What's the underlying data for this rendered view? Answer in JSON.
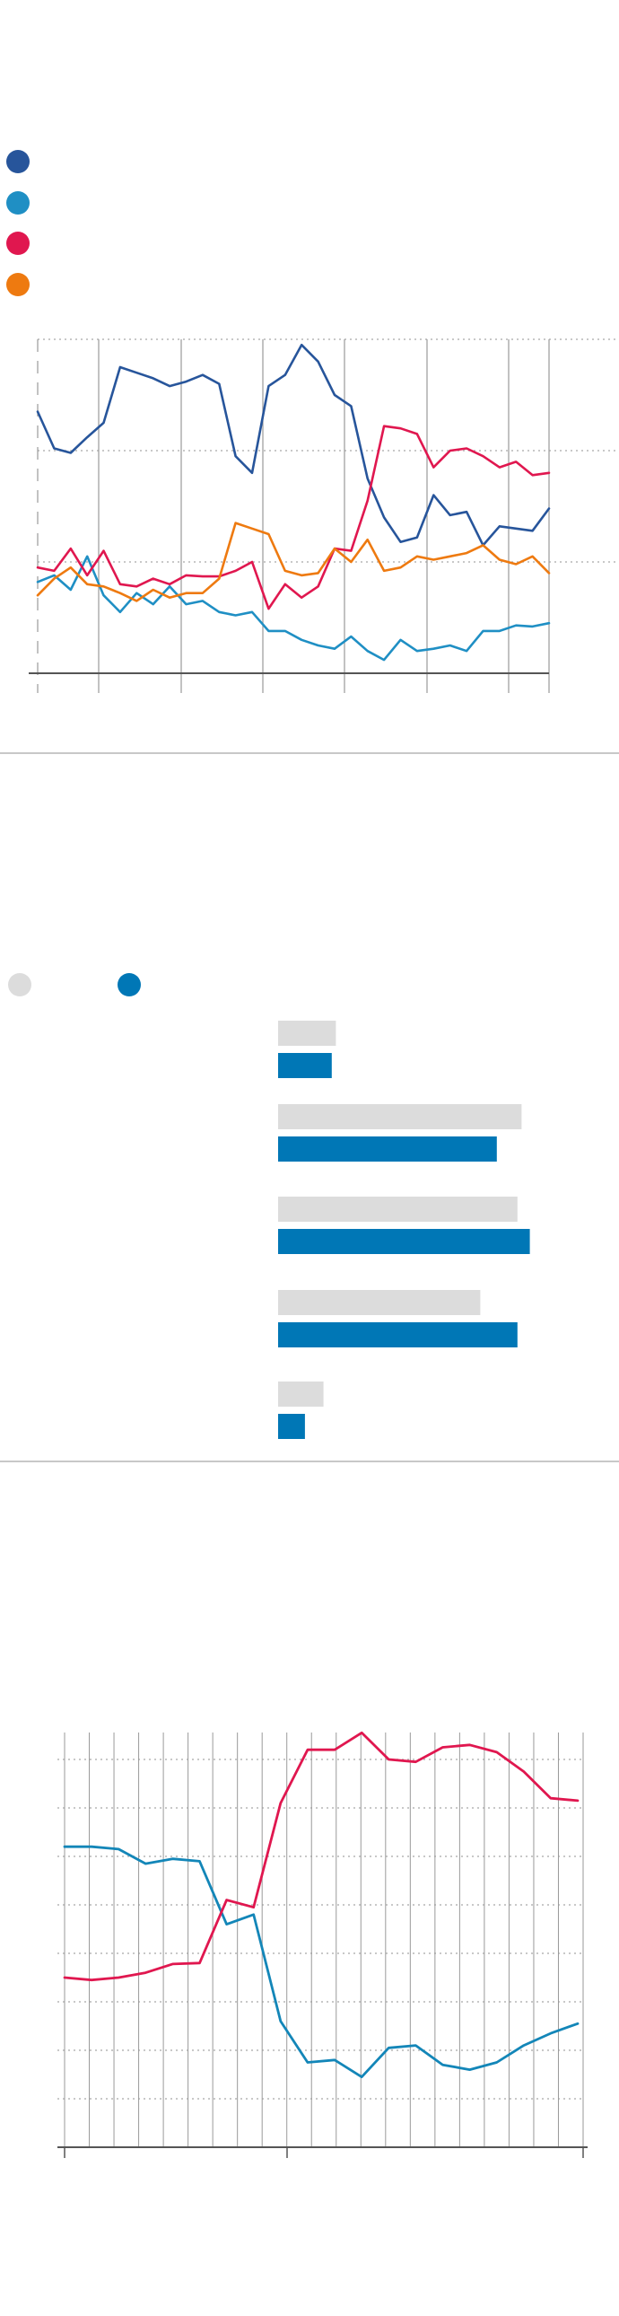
{
  "colors": {
    "dark_blue": "#27559b",
    "light_blue": "#1f8fc4",
    "red": "#e0174f",
    "orange": "#ee7a10",
    "gray_bar": "#dcdcdc",
    "blue_bar": "#0077b6",
    "teal_blue": "#1386b8",
    "axis": "#555555",
    "grid_dotted": "#b5b5b5",
    "grid_solid": "#9a9a9a",
    "divider": "#c8c8c8"
  },
  "chart_data": [
    {
      "type": "line",
      "grid": true,
      "ylim": [
        0,
        3
      ],
      "xlim": [
        0,
        40
      ],
      "legend_placement": "top-left",
      "series": [
        {
          "color": "#27559b",
          "values": [
            2.35,
            2.02,
            1.98,
            2.12,
            2.25,
            2.75,
            2.7,
            2.65,
            2.58,
            2.62,
            2.68,
            2.6,
            1.95,
            1.8,
            2.58,
            2.68,
            2.95,
            2.8,
            2.5,
            2.4,
            1.75,
            1.4,
            1.18,
            1.22,
            1.6,
            1.42,
            1.45,
            1.15,
            1.32,
            1.3,
            1.28,
            1.48
          ]
        },
        {
          "color": "#1f8fc4",
          "values": [
            0.82,
            0.88,
            0.75,
            1.05,
            0.7,
            0.55,
            0.72,
            0.62,
            0.78,
            0.62,
            0.65,
            0.55,
            0.52,
            0.55,
            0.38,
            0.38,
            0.3,
            0.25,
            0.22,
            0.33,
            0.2,
            0.12,
            0.3,
            0.2,
            0.22,
            0.25,
            0.2,
            0.38,
            0.38,
            0.43,
            0.42,
            0.45
          ]
        },
        {
          "color": "#e0174f",
          "values": [
            0.95,
            0.92,
            1.12,
            0.88,
            1.1,
            0.8,
            0.78,
            0.85,
            0.8,
            0.88,
            0.87,
            0.87,
            0.92,
            1.0,
            0.58,
            0.8,
            0.68,
            0.78,
            1.12,
            1.1,
            1.55,
            2.22,
            2.2,
            2.15,
            1.85,
            2.0,
            2.02,
            1.95,
            1.85,
            1.9,
            1.78,
            1.8
          ]
        },
        {
          "color": "#ee7a10",
          "values": [
            0.7,
            0.85,
            0.95,
            0.8,
            0.78,
            0.72,
            0.65,
            0.75,
            0.68,
            0.72,
            0.72,
            0.85,
            1.35,
            1.3,
            1.25,
            0.92,
            0.88,
            0.9,
            1.12,
            1.0,
            1.2,
            0.92,
            0.95,
            1.05,
            1.02,
            1.05,
            1.08,
            1.15,
            1.02,
            0.98,
            1.05,
            0.9
          ]
        }
      ]
    },
    {
      "type": "bar",
      "xlim": [
        0,
        100
      ],
      "legend_placement": "top-left",
      "series": [
        {
          "color": "#dcdcdc",
          "values": [
            14,
            59,
            58,
            49,
            11
          ]
        },
        {
          "color": "#0077b6",
          "values": [
            13,
            53,
            61,
            58,
            6.5
          ]
        }
      ]
    },
    {
      "type": "line",
      "grid": true,
      "ylim": [
        0,
        8
      ],
      "xlim": [
        0,
        21
      ],
      "series": [
        {
          "color": "#1386b8",
          "values": [
            6.2,
            6.2,
            6.15,
            5.85,
            5.95,
            5.9,
            4.6,
            4.8,
            2.6,
            1.75,
            1.8,
            1.45,
            2.05,
            2.1,
            1.7,
            1.6,
            1.75,
            2.1,
            2.35,
            2.55
          ]
        },
        {
          "color": "#e0174f",
          "values": [
            3.5,
            3.45,
            3.5,
            3.6,
            3.78,
            3.8,
            5.1,
            4.95,
            7.1,
            8.2,
            8.2,
            8.55,
            8.0,
            7.95,
            8.25,
            8.3,
            8.15,
            7.75,
            7.2,
            7.15
          ]
        }
      ]
    }
  ]
}
